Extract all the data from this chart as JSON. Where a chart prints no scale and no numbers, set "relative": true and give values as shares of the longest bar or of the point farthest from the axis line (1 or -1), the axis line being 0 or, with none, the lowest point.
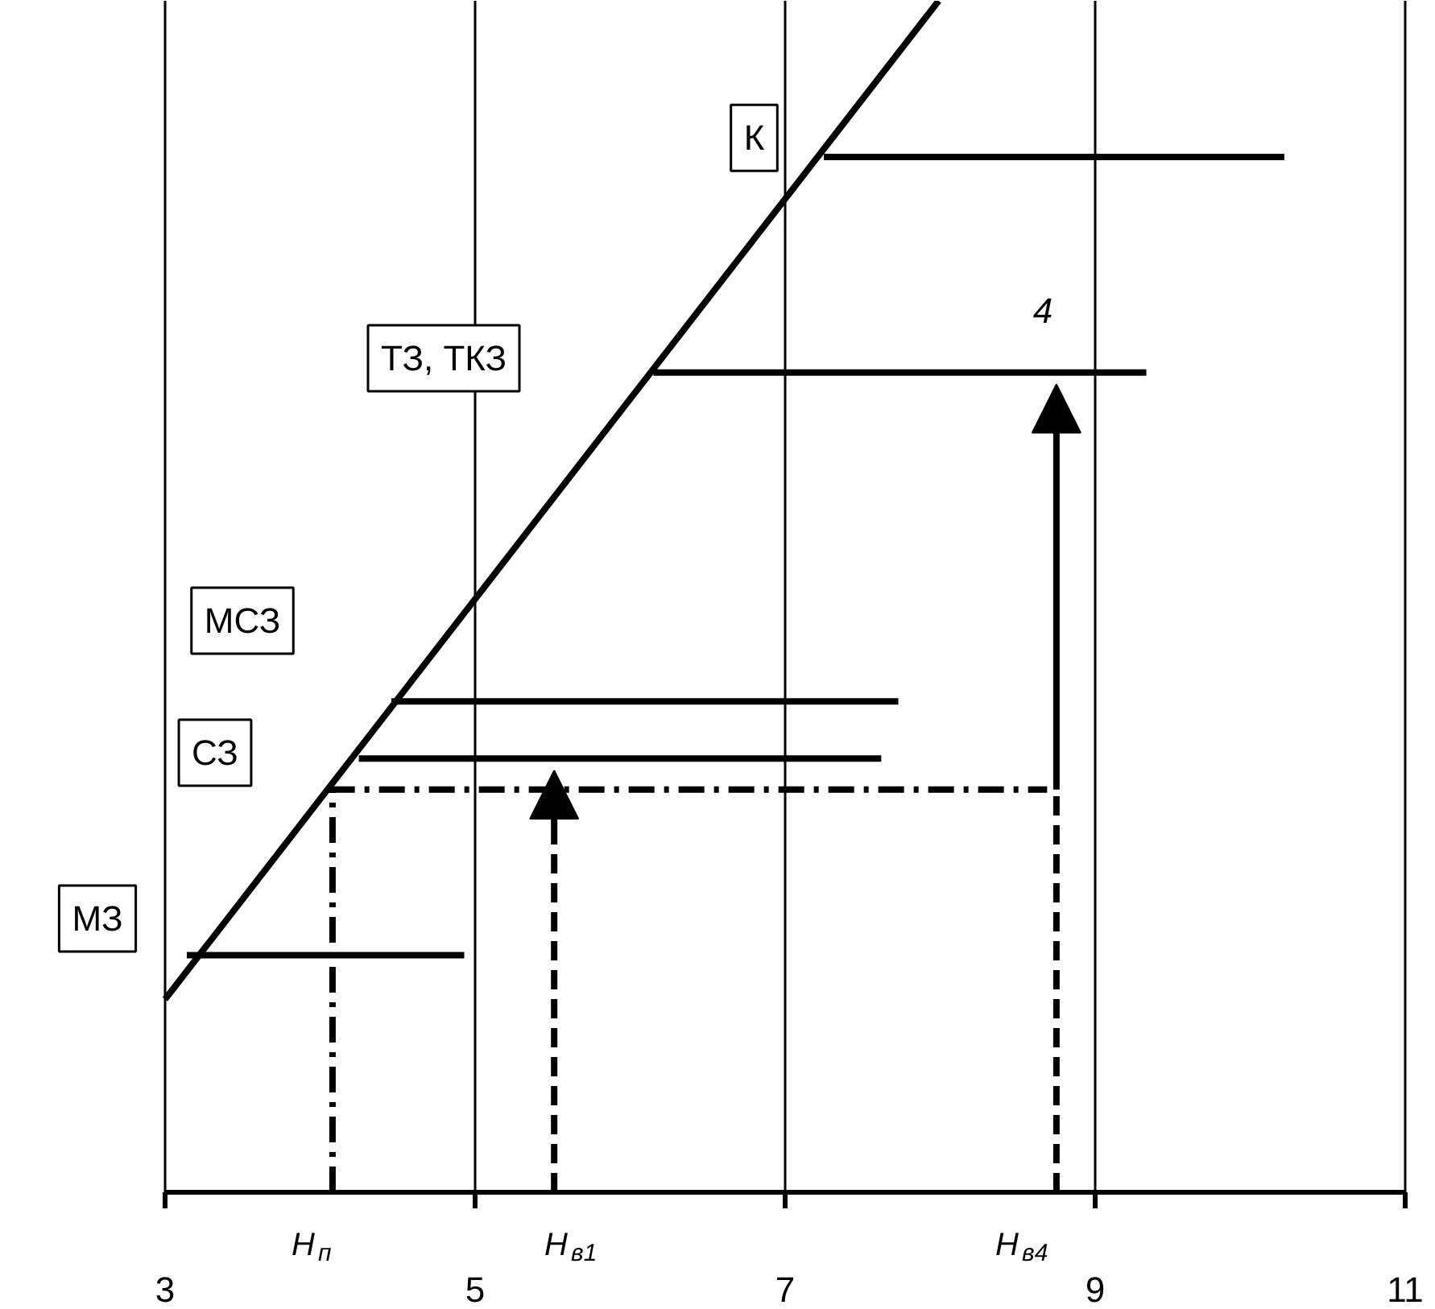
{
  "chart_data": {
    "type": "line",
    "relative": true,
    "xlim": [
      3,
      11
    ],
    "xticks": [
      3,
      5,
      7,
      9,
      11
    ],
    "grid": "x",
    "line_style": "solid",
    "series": [
      {
        "color": "#000000",
        "x": [
          3.0,
          7.99
        ],
        "values": [
          0.162,
          1.0
        ]
      },
      {
        "color": "#000000",
        "x": [
          7.25,
          10.22
        ],
        "values": [
          0.869,
          0.869
        ]
      },
      {
        "color": "#000000",
        "x": [
          6.15,
          9.33
        ],
        "values": [
          0.688,
          0.688
        ]
      },
      {
        "color": "#000000",
        "x": [
          4.46,
          7.73
        ],
        "values": [
          0.412,
          0.412
        ]
      },
      {
        "color": "#000000",
        "x": [
          4.25,
          7.62
        ],
        "values": [
          0.364,
          0.364
        ]
      },
      {
        "color": "#000000",
        "x": [
          3.14,
          4.93
        ],
        "values": [
          0.199,
          0.199
        ]
      },
      {
        "color": "#000000",
        "x": [
          4.08,
          4.08,
          8.69
        ],
        "values": [
          0,
          0.338,
          0.338
        ],
        "line_style": "dashdot"
      },
      {
        "color": "#000000",
        "x": [
          8.75,
          8.75
        ],
        "values": [
          0,
          0.338
        ],
        "line_style": "dashed"
      },
      {
        "color": "#000000",
        "x": [
          5.51,
          5.51
        ],
        "values": [
          0,
          0.3
        ],
        "line_style": "dashed"
      }
    ],
    "annotations": [
      {
        "text": "К",
        "x": 6.8,
        "y": 0.885
      },
      "4",
      "ТЗ, ТКЗ",
      "МСЗ",
      "СЗ",
      "МЗ",
      "H$_{п}$",
      "H$_{в1}$",
      "H$_{в4}$"
    ]
  }
}
